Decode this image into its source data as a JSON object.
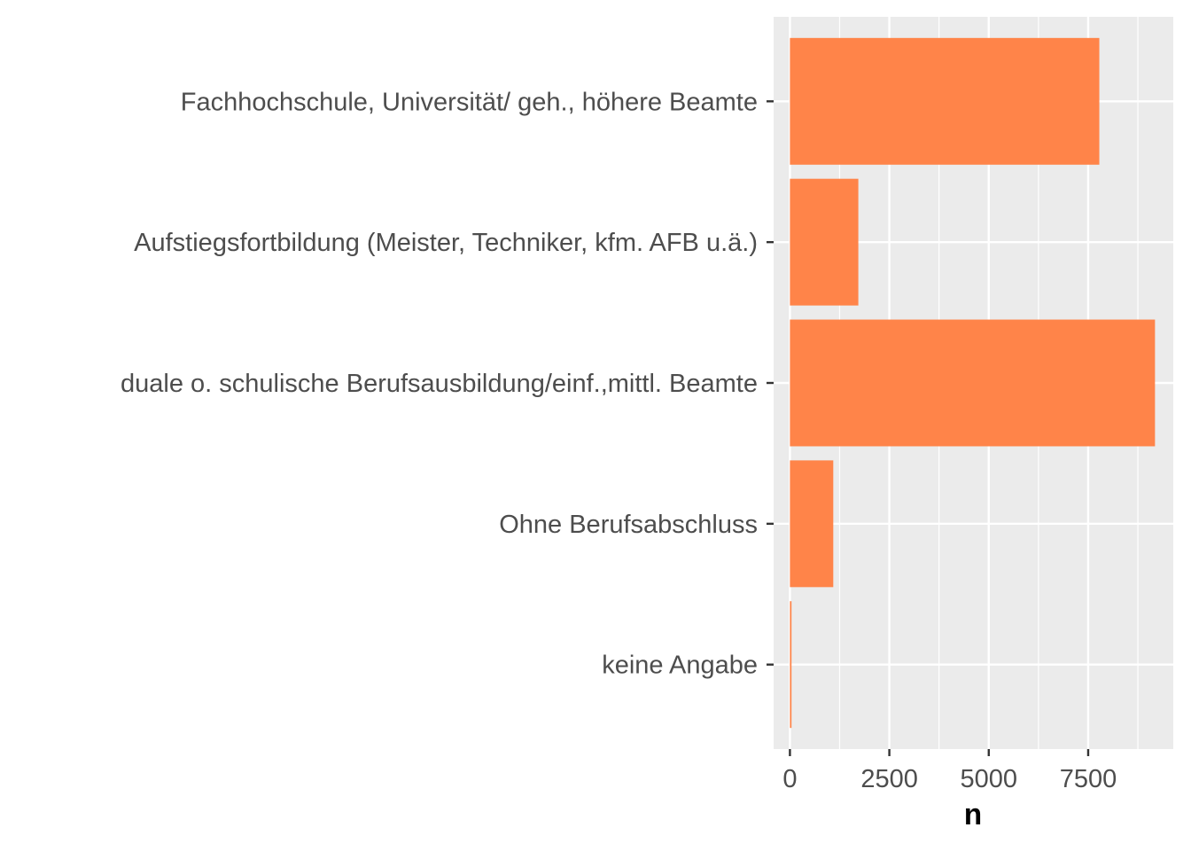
{
  "chart_data": {
    "type": "bar",
    "orientation": "horizontal",
    "categories": [
      "Fachhochschule, Universität/ geh., höhere Beamte",
      "Aufstiegsfortbildung (Meister, Techniker, kfm. AFB u.ä.)",
      "duale o. schulische Berufsausbildung/einf.,mittl. Beamte",
      "Ohne Berufsabschluss",
      "keine Angabe"
    ],
    "values": [
      7780,
      1720,
      9180,
      1090,
      40
    ],
    "xlabel": "n",
    "ylabel": "",
    "xlim": [
      -410,
      9640
    ],
    "xticks": [
      "0",
      "2500",
      "5000",
      "7500"
    ],
    "xtick_values": [
      0,
      2500,
      5000,
      7500
    ],
    "bar_color": "#ff8449",
    "panel_background": "#ebebeb",
    "grid": true
  }
}
